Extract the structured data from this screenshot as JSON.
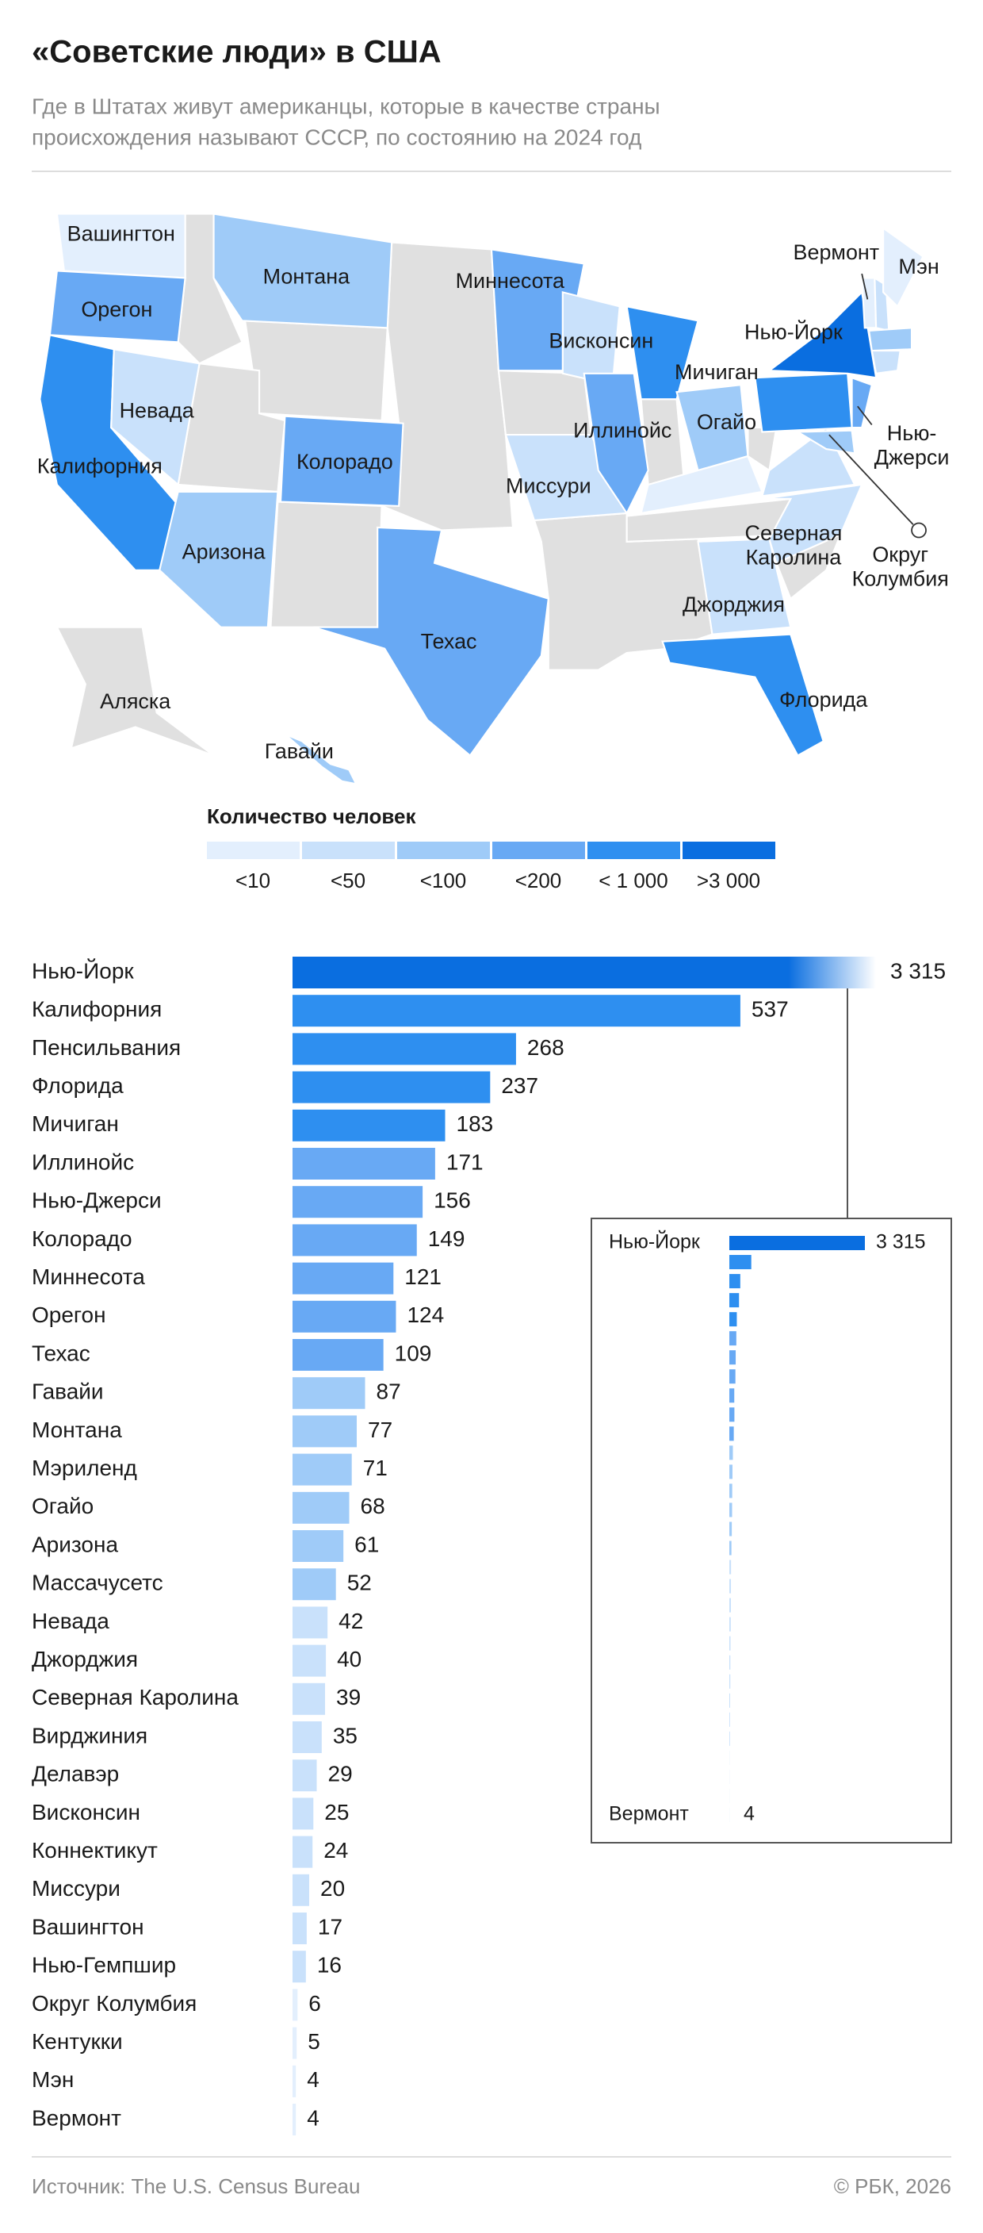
{
  "header": {
    "title": "«Советские люди» в США",
    "subtitle": [
      "Где в Штатах живут американцы, которые в качестве страны",
      "происхождения называют СССР, по состоянию на 2024 год"
    ]
  },
  "map": {
    "labels": [
      "Вашингтон",
      "Монтана",
      "Орегон",
      "Миннесота",
      "Висконсин",
      "Нью-Йорк",
      "Вермонт",
      "Мэн",
      "Невада",
      "Мичиган",
      "Калифорния",
      "Колорадо",
      "Иллинойс",
      "Огайо",
      [
        "Нью-",
        "Джерси"
      ],
      "Миссури",
      [
        "Северная",
        "Каролина"
      ],
      [
        "Округ",
        "Колумбия"
      ],
      "Аризона",
      "Техас",
      "Джорджия",
      "Флорида",
      "Аляска",
      "Гавайи"
    ],
    "legend": {
      "title": "Количество человек",
      "items": [
        {
          "label": "<10",
          "color": "#e3effd"
        },
        {
          "label": "<50",
          "color": "#c9e1fb"
        },
        {
          "label": "<100",
          "color": "#9fcbf8"
        },
        {
          "label": "<200",
          "color": "#68a9f4"
        },
        {
          "label": "< 1 000",
          "color": "#2e8ff0"
        },
        {
          "label": ">3 000",
          "color": "#0a6ee0"
        }
      ]
    }
  },
  "chart_data": {
    "type": "bar",
    "orientation": "horizontal",
    "categories": [
      "Нью-Йорк",
      "Калифорния",
      "Пенсильвания",
      "Флорида",
      "Мичиган",
      "Иллинойс",
      "Нью-Джерси",
      "Колорадо",
      "Миннесота",
      "Орегон",
      "Техас",
      "Гавайи",
      "Монтана",
      "Мэриленд",
      "Огайо",
      "Аризона",
      "Массачусетс",
      "Невада",
      "Джорджия",
      "Северная Каролина",
      "Вирджиния",
      "Делавэр",
      "Висконсин",
      "Коннектикут",
      "Миссури",
      "Вашингтон",
      "Нью-Гемпшир",
      "Округ Колумбия",
      "Кентукки",
      "Мэн",
      "Вермонт"
    ],
    "values": [
      3315,
      537,
      268,
      237,
      183,
      171,
      156,
      149,
      121,
      124,
      109,
      87,
      77,
      71,
      68,
      61,
      52,
      42,
      40,
      39,
      35,
      29,
      25,
      24,
      20,
      17,
      16,
      6,
      5,
      4,
      4
    ],
    "value_labels": [
      "3 315",
      "537",
      "268",
      "237",
      "183",
      "171",
      "156",
      "149",
      "121",
      "124",
      "109",
      "87",
      "77",
      "71",
      "68",
      "61",
      "52",
      "42",
      "40",
      "39",
      "35",
      "29",
      "25",
      "24",
      "20",
      "17",
      "16",
      "6",
      "5",
      "4",
      "4"
    ],
    "colors": [
      "#0a6ee0",
      "#2e8ff0",
      "#2e8ff0",
      "#2e8ff0",
      "#2e8ff0",
      "#68a9f4",
      "#68a9f4",
      "#68a9f4",
      "#68a9f4",
      "#68a9f4",
      "#68a9f4",
      "#9fcbf8",
      "#9fcbf8",
      "#9fcbf8",
      "#9fcbf8",
      "#9fcbf8",
      "#9fcbf8",
      "#c9e1fb",
      "#c9e1fb",
      "#c9e1fb",
      "#c9e1fb",
      "#c9e1fb",
      "#c9e1fb",
      "#c9e1fb",
      "#c9e1fb",
      "#c9e1fb",
      "#c9e1fb",
      "#e3effd",
      "#e3effd",
      "#e3effd",
      "#e3effd"
    ]
  },
  "footer": {
    "source": "Источник: The U.S. Census Bureau",
    "copyright": "© РБК, 2026"
  }
}
